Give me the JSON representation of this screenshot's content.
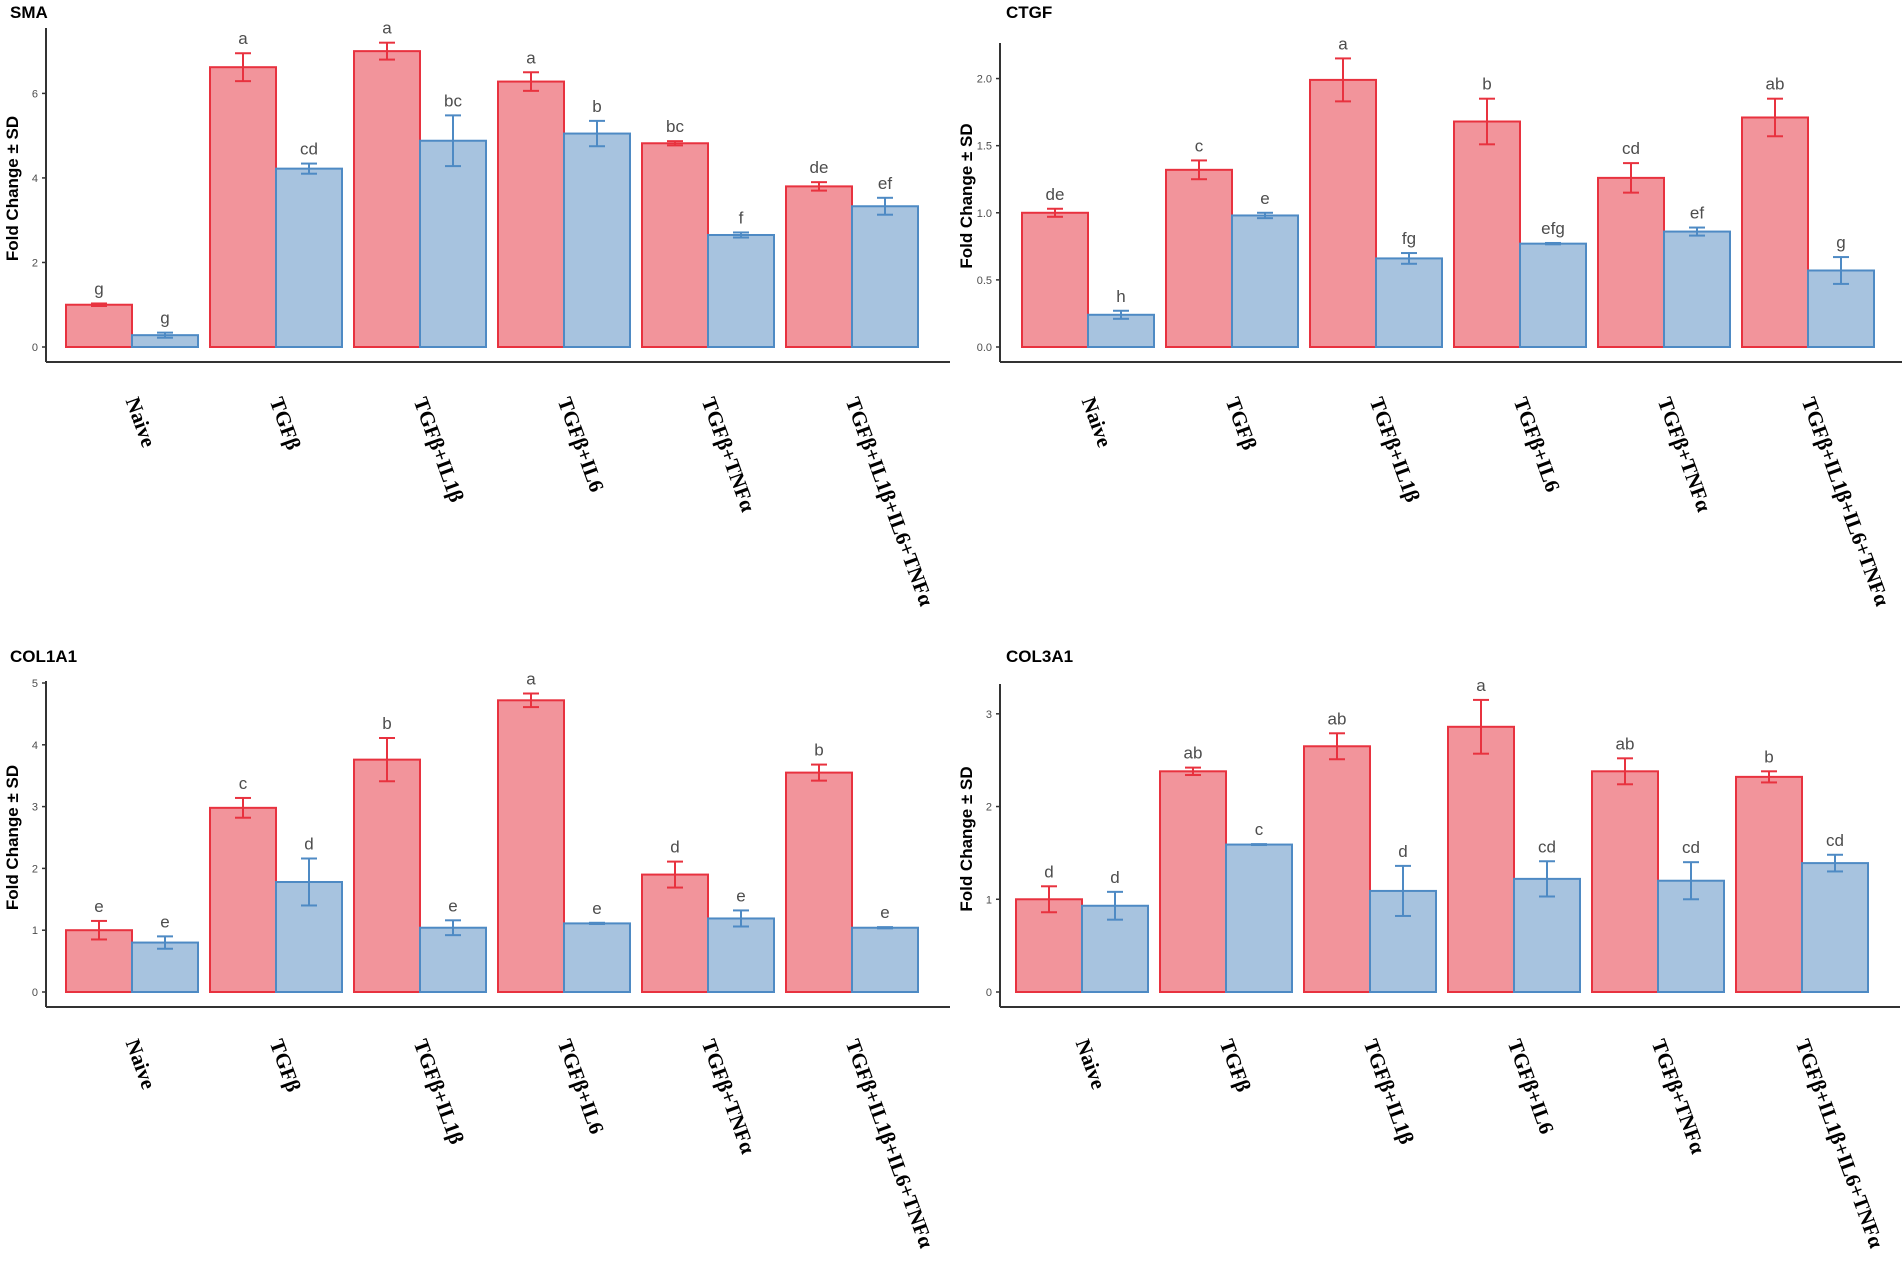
{
  "colors": {
    "bar_red": "#f2949b",
    "stroke_red": "#e8323f",
    "bar_blue": "#a7c3df",
    "stroke_blue": "#4e8ac4"
  },
  "ylabel": "Fold Change ± SD",
  "categories": [
    "Naive",
    "TGFβ",
    "TGFβ+IL1β",
    "TGFβ+IL6",
    "TGFβ+TNFα",
    "TGFβ+IL1β+IL6+TNFα"
  ],
  "chart_data": [
    {
      "type": "bar",
      "title": "SMA",
      "ylabel": "Fold Change ± SD",
      "ylim": [
        0,
        7.5
      ],
      "yticks": [
        0,
        2,
        4,
        6
      ],
      "categories": [
        "Naive",
        "TGFβ",
        "TGFβ+IL1β",
        "TGFβ+IL6",
        "TGFβ+TNFα",
        "TGFβ+IL1β+IL6+TNFα"
      ],
      "series": [
        {
          "name": "red",
          "values": [
            1.0,
            6.62,
            7.0,
            6.28,
            4.82,
            3.8
          ],
          "sd": [
            0.03,
            0.33,
            0.2,
            0.22,
            0.05,
            0.1
          ],
          "letters": [
            "g",
            "a",
            "a",
            "a",
            "bc",
            "de"
          ]
        },
        {
          "name": "blue",
          "values": [
            0.28,
            4.22,
            4.88,
            5.05,
            2.65,
            3.33
          ],
          "sd": [
            0.06,
            0.12,
            0.6,
            0.3,
            0.06,
            0.2
          ],
          "letters": [
            "g",
            "cd",
            "bc",
            "b",
            "f",
            "ef"
          ]
        }
      ]
    },
    {
      "type": "bar",
      "title": "CTGF",
      "ylabel": "Fold Change ± SD",
      "ylim": [
        0,
        2.25
      ],
      "yticks": [
        "0.0",
        "0.5",
        "1.0",
        "1.5",
        "2.0"
      ],
      "categories": [
        "Naive",
        "TGFβ",
        "TGFβ+IL1β",
        "TGFβ+IL6",
        "TGFβ+TNFα",
        "TGFβ+IL1β+IL6+TNFα"
      ],
      "series": [
        {
          "name": "red",
          "values": [
            1.0,
            1.32,
            1.99,
            1.68,
            1.26,
            1.71
          ],
          "sd": [
            0.03,
            0.07,
            0.16,
            0.17,
            0.11,
            0.14
          ],
          "letters": [
            "de",
            "c",
            "a",
            "b",
            "cd",
            "ab"
          ]
        },
        {
          "name": "blue",
          "values": [
            0.24,
            0.98,
            0.66,
            0.77,
            0.86,
            0.57
          ],
          "sd": [
            0.03,
            0.02,
            0.04,
            0.005,
            0.03,
            0.1
          ],
          "letters": [
            "h",
            "e",
            "fg",
            "efg",
            "ef",
            "g"
          ]
        }
      ]
    },
    {
      "type": "bar",
      "title": "COL1A1",
      "ylabel": "Fold Change ± SD",
      "ylim": [
        0,
        5.0
      ],
      "yticks": [
        0,
        1,
        2,
        3,
        4,
        5
      ],
      "categories": [
        "Naive",
        "TGFβ",
        "TGFβ+IL1β",
        "TGFβ+IL6",
        "TGFβ+TNFα",
        "TGFβ+IL1β+IL6+TNFα"
      ],
      "series": [
        {
          "name": "red",
          "values": [
            1.0,
            2.98,
            3.76,
            4.72,
            1.9,
            3.55
          ],
          "sd": [
            0.15,
            0.16,
            0.35,
            0.11,
            0.21,
            0.13
          ],
          "letters": [
            "e",
            "c",
            "b",
            "a",
            "d",
            "b"
          ]
        },
        {
          "name": "blue",
          "values": [
            0.8,
            1.78,
            1.04,
            1.11,
            1.19,
            1.04
          ],
          "sd": [
            0.1,
            0.38,
            0.12,
            0.01,
            0.13,
            0.01
          ],
          "letters": [
            "e",
            "d",
            "e",
            "e",
            "e",
            "e"
          ]
        }
      ]
    },
    {
      "type": "bar",
      "title": "COL3A1",
      "ylabel": "Fold Change ± SD",
      "ylim": [
        0,
        3.3
      ],
      "yticks": [
        0,
        1,
        2,
        3
      ],
      "categories": [
        "Naive",
        "TGFβ",
        "TGFβ+IL1β",
        "TGFβ+IL6",
        "TGFβ+TNFα",
        "TGFβ+IL1β+IL6+TNFα"
      ],
      "series": [
        {
          "name": "red",
          "values": [
            1.0,
            2.38,
            2.65,
            2.86,
            2.38,
            2.32
          ],
          "sd": [
            0.14,
            0.04,
            0.14,
            0.29,
            0.14,
            0.06
          ],
          "letters": [
            "d",
            "ab",
            "ab",
            "a",
            "ab",
            "b"
          ]
        },
        {
          "name": "blue",
          "values": [
            0.93,
            1.59,
            1.09,
            1.22,
            1.2,
            1.39
          ],
          "sd": [
            0.15,
            0.005,
            0.27,
            0.19,
            0.2,
            0.09
          ],
          "letters": [
            "d",
            "c",
            "d",
            "cd",
            "cd",
            "cd"
          ]
        }
      ]
    }
  ]
}
